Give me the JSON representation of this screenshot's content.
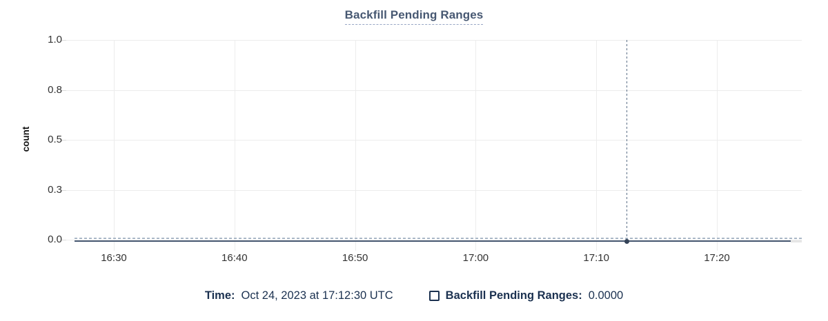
{
  "header": {
    "title": "Backfill Pending Ranges"
  },
  "axes": {
    "y_axis_title": "count",
    "y_tick_labels": [
      "1.0",
      "0.8",
      "0.5",
      "0.3",
      "0.0"
    ],
    "x_tick_labels": [
      "16:30",
      "16:40",
      "16:50",
      "17:00",
      "17:10",
      "17:20"
    ]
  },
  "hover_legend": {
    "time_label": "Time:",
    "time_value": "Oct 24, 2023 at 17:12:30 UTC",
    "series_label": "Backfill Pending Ranges:",
    "series_value": "0.0000",
    "checkbox_checked": false
  },
  "colors": {
    "title_slate": "#475872",
    "legend_navy": "#1b3150",
    "series_line": "#475872",
    "crosshair": "#5a6e86",
    "zero_guide_dash": "#a9b7c6",
    "gridline": "#ececec",
    "tick_text": "#323232",
    "background": "#ffffff"
  },
  "chart_data": {
    "type": "line",
    "title": "Backfill Pending Ranges",
    "xlabel": "",
    "ylabel": "count",
    "x": [
      "16:30",
      "16:40",
      "16:50",
      "17:00",
      "17:10",
      "17:20"
    ],
    "series": [
      {
        "name": "Backfill Pending Ranges",
        "values": [
          0,
          0,
          0,
          0,
          0,
          0
        ],
        "constant_value": 0
      }
    ],
    "ylim": [
      0.0,
      1.0
    ],
    "y_ticks": [
      1.0,
      0.8,
      0.5,
      0.3,
      0.0
    ],
    "grid": true,
    "legend_position": "bottom",
    "hover_point": {
      "time": "Oct 24, 2023 at 17:12:30 UTC",
      "x_between_ticks": "17:10 and 17:20",
      "value": 0.0
    }
  }
}
